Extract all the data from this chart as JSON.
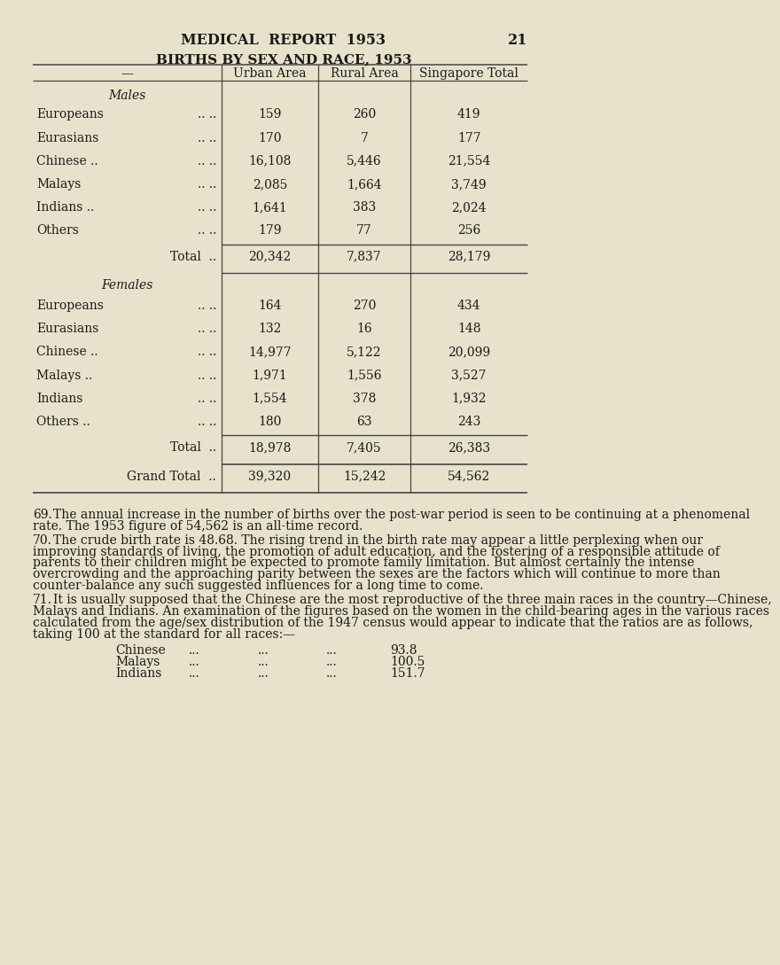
{
  "page_title": "MEDICAL  REPORT  1953",
  "page_number": "21",
  "table_title": "BIRTHS BY SEX AND RACE, 1953",
  "bg_color": "#e8e2cc",
  "text_color": "#1a1a1a",
  "males_label": "Males",
  "males_rows": [
    [
      "Europeans",
      "..",
      "..",
      "159",
      "260",
      "419"
    ],
    [
      "Eurasians",
      "..",
      "..",
      "170",
      "7",
      "177"
    ],
    [
      "Chinese ..",
      "..",
      "..",
      "16,108",
      "5,446",
      "21,554"
    ],
    [
      "Malays",
      "..",
      "..",
      "2,085",
      "1,664",
      "3,749"
    ],
    [
      "Indians ..",
      "..",
      "..",
      "1,641",
      "383",
      "2,024"
    ],
    [
      "Others",
      "..",
      "..",
      "179",
      "77",
      "256"
    ]
  ],
  "males_total": [
    "Total ..",
    "20,342",
    "7,837",
    "28,179"
  ],
  "females_label": "Females",
  "females_rows": [
    [
      "Europeans",
      "..",
      "..",
      "164",
      "270",
      "434"
    ],
    [
      "Eurasians",
      "..",
      "..",
      "132",
      "16",
      "148"
    ],
    [
      "Chinese ..",
      "..",
      "..",
      "14,977",
      "5,122",
      "20,099"
    ],
    [
      "Malays ..",
      "..",
      "..",
      "1,971",
      "1,556",
      "3,527"
    ],
    [
      "Indians",
      "..",
      "..",
      "1,554",
      "378",
      "1,932"
    ],
    [
      "Others ..",
      "..",
      "..",
      "180",
      "63",
      "243"
    ]
  ],
  "females_total": [
    "Total ..",
    "18,978",
    "7,405",
    "26,383"
  ],
  "grand_total": [
    "Grand Total ..",
    "39,320",
    "15,242",
    "54,562"
  ],
  "paragraph69": "69.  The annual increase in the number of births over the post-war period is seen to be continuing at a phenomenal rate. The 1953 figure of 54,562 is an all-time record.",
  "paragraph70": "70.  The crude birth rate is 48.68. The rising trend in the birth rate may appear a little perplexing when our improving standards of living, the promotion of adult education, and the fostering of a responsible attitude of parents to their children might be expected to promote family limitation. But almost certainly the intense overcrowding and the approaching parity between the sexes are the factors which will continue to more than counter-balance any such suggested influences for a long time to come.",
  "paragraph71": "71.  It is usually supposed that the Chinese are the most reproductive of the three main races in the country—Chinese, Malays and Indians. An examination of the figures based on the women in the child-bearing ages in the various races calculated from the age/sex distribution of the 1947 census would appear to indicate that the ratios are as follows, taking 100 at the standard for all races:—",
  "ratios": [
    [
      "Chinese",
      "93.8"
    ],
    [
      "Malays",
      "100.5"
    ],
    [
      "Indians",
      "151.7"
    ]
  ],
  "col_headers": [
    "Urban Area",
    "Rural Area",
    "Singapore Total"
  ],
  "dash_label": "—"
}
